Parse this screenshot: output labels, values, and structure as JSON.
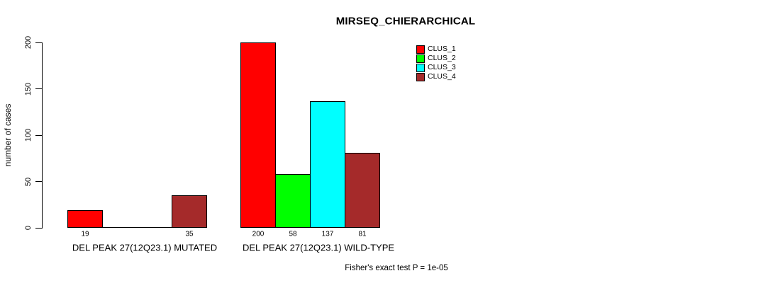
{
  "chart_data": {
    "type": "bar",
    "title": "MIRSEQ_CHIERARCHICAL",
    "ylabel": "number of cases",
    "ylim": [
      0,
      200
    ],
    "yticks": [
      0,
      50,
      100,
      150,
      200
    ],
    "grid": false,
    "legend_position": "top-right",
    "categories": [
      "DEL PEAK 27(12Q23.1) MUTATED",
      "DEL PEAK 27(12Q23.1) WILD-TYPE"
    ],
    "series": [
      {
        "name": "CLUS_1",
        "color": "#FF0000",
        "values": [
          19,
          200
        ]
      },
      {
        "name": "CLUS_2",
        "color": "#00FF00",
        "values": [
          0,
          58
        ]
      },
      {
        "name": "CLUS_3",
        "color": "#00FFFF",
        "values": [
          0,
          137
        ]
      },
      {
        "name": "CLUS_4",
        "color": "#A52A2A",
        "values": [
          35,
          81
        ]
      }
    ],
    "annotation": "Fisher's exact test P = 1e-05"
  }
}
